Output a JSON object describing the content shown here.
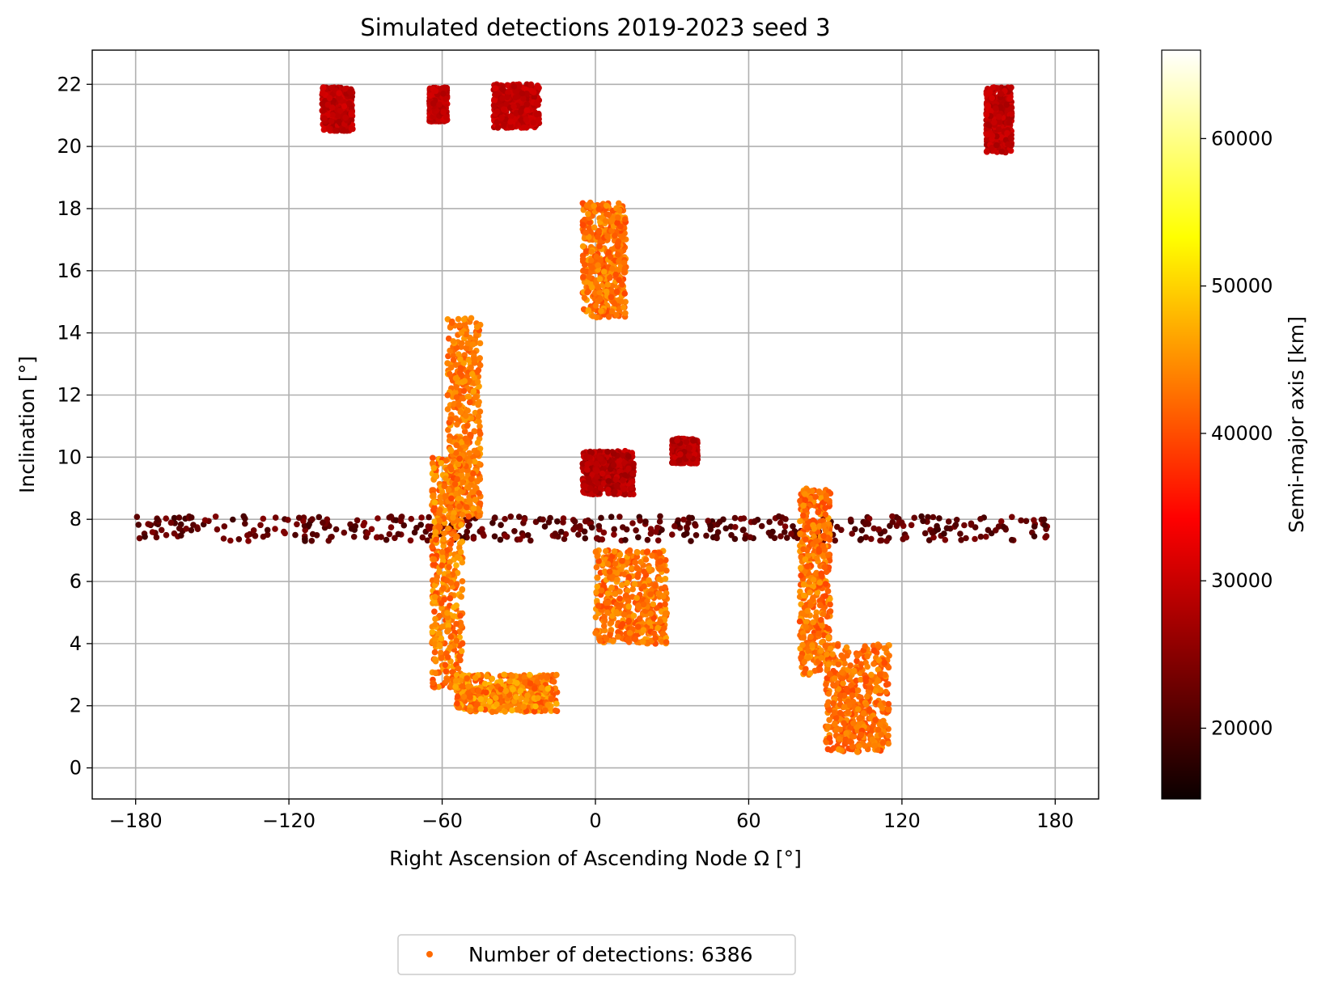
{
  "chart_data": {
    "type": "scatter",
    "title": "Simulated detections 2019-2023 seed 3",
    "xlabel": "Right Ascension of Ascending Node Ω [°]",
    "ylabel": "Inclination [°]",
    "xlim": [
      -197,
      197
    ],
    "ylim": [
      -1,
      23.1
    ],
    "x_ticks": [
      -180,
      -120,
      -60,
      0,
      60,
      120,
      180
    ],
    "x_tick_labels": [
      "−180",
      "−120",
      "−60",
      "0",
      "60",
      "120",
      "180"
    ],
    "y_ticks": [
      0,
      2,
      4,
      6,
      8,
      10,
      12,
      14,
      16,
      18,
      20,
      22
    ],
    "y_tick_labels": [
      "0",
      "2",
      "4",
      "6",
      "8",
      "10",
      "12",
      "14",
      "16",
      "18",
      "20",
      "22"
    ],
    "grid": true,
    "legend": {
      "placement": "bottom-center, below plot",
      "label": "Number of detections: 6386",
      "marker_color": "#ff6a00"
    },
    "colorbar": {
      "label": "Semi-major axis [km]",
      "colormap": "hot",
      "range": [
        15200,
        66000
      ],
      "ticks": [
        20000,
        30000,
        40000,
        50000,
        60000
      ],
      "tick_labels": [
        "20000",
        "30000",
        "40000",
        "50000",
        "60000"
      ]
    },
    "series": [
      {
        "name": "Number of detections: 6386",
        "count": 6386,
        "clusters": [
          {
            "x": [
              -40,
              -22
            ],
            "y": [
              20.6,
              22.0
            ],
            "sma": [
              27000,
              30000
            ]
          },
          {
            "x": [
              -107,
              -95
            ],
            "y": [
              20.5,
              21.9
            ],
            "sma": [
              26500,
              30000
            ]
          },
          {
            "x": [
              -65,
              -58
            ],
            "y": [
              20.8,
              21.9
            ],
            "sma": [
              27000,
              30000
            ]
          },
          {
            "x": [
              153,
              163
            ],
            "y": [
              19.8,
              21.9
            ],
            "sma": [
              26500,
              30000
            ]
          },
          {
            "x": [
              -180,
              180
            ],
            "y": [
              7.3,
              8.1
            ],
            "sma": [
              19000,
              24000
            ]
          },
          {
            "x": [
              -5,
              12
            ],
            "y": [
              14.5,
              18.2
            ],
            "sma": [
              39000,
              46000
            ]
          },
          {
            "x": [
              -58,
              -45
            ],
            "y": [
              8.0,
              14.5
            ],
            "sma": [
              40000,
              46000
            ]
          },
          {
            "x": [
              -64,
              -52
            ],
            "y": [
              2.5,
              10.0
            ],
            "sma": [
              39000,
              47000
            ]
          },
          {
            "x": [
              -55,
              -15
            ],
            "y": [
              1.8,
              3.0
            ],
            "sma": [
              39000,
              48000
            ]
          },
          {
            "x": [
              80,
              92
            ],
            "y": [
              3.0,
              9.0
            ],
            "sma": [
              39000,
              46000
            ]
          },
          {
            "x": [
              90,
              115
            ],
            "y": [
              0.5,
              4.0
            ],
            "sma": [
              39000,
              45000
            ]
          },
          {
            "x": [
              0,
              28
            ],
            "y": [
              4.0,
              7.0
            ],
            "sma": [
              39000,
              46000
            ]
          },
          {
            "x": [
              30,
              40
            ],
            "y": [
              9.8,
              10.6
            ],
            "sma": [
              26000,
              29500
            ]
          },
          {
            "x": [
              -5,
              15
            ],
            "y": [
              8.8,
              10.2
            ],
            "sma": [
              25500,
              29500
            ]
          }
        ]
      }
    ]
  }
}
